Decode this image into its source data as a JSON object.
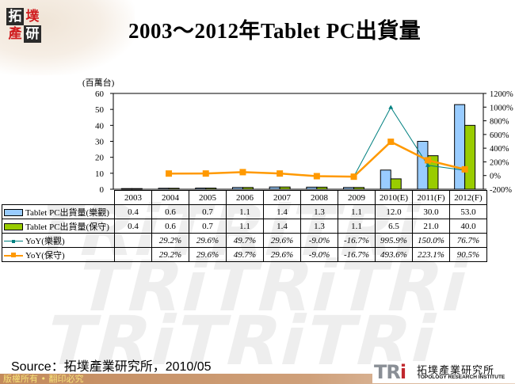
{
  "header": {
    "logo_chars": [
      "拓",
      "墣",
      "產",
      "研"
    ],
    "title": "2003～2012年Tablet PC出貨量"
  },
  "chart_data": {
    "type": "bar",
    "title": "2003～2012年Tablet PC出貨量",
    "ylabel": "(百萬台)",
    "ylim": [
      0,
      60
    ],
    "yticks": [
      "0",
      "10",
      "20",
      "30",
      "40",
      "50",
      "60"
    ],
    "y2lim": [
      -200,
      1200
    ],
    "y2ticks": [
      "-200%",
      "0%",
      "200%",
      "400%",
      "600%",
      "800%",
      "1000%",
      "1200%"
    ],
    "categories": [
      "2003",
      "2004",
      "2005",
      "2006",
      "2007",
      "2008",
      "2009",
      "2010(E)",
      "2011(F)",
      "2012(F)"
    ],
    "series": [
      {
        "name": "Tablet PC出貨量(樂觀)",
        "type": "bar",
        "axis": "left",
        "color": "#99ccff",
        "values": [
          0.4,
          0.6,
          0.7,
          1.1,
          1.4,
          1.3,
          1.1,
          12.0,
          30.0,
          53.0
        ]
      },
      {
        "name": "Tablet PC出貨量(保守)",
        "type": "bar",
        "axis": "left",
        "color": "#99cc00",
        "values": [
          0.4,
          0.6,
          0.7,
          1.1,
          1.4,
          1.3,
          1.1,
          6.5,
          21.0,
          40.0
        ]
      },
      {
        "name": "YoY(樂觀)",
        "type": "line",
        "axis": "right",
        "color": "#008080",
        "values": [
          null,
          29.2,
          29.6,
          49.7,
          29.6,
          -9.0,
          -16.7,
          995.9,
          150.0,
          76.7
        ]
      },
      {
        "name": "YoY(保守)",
        "type": "line",
        "axis": "right",
        "color": "#ff9900",
        "values": [
          null,
          29.2,
          29.6,
          49.7,
          29.6,
          -9.0,
          -16.7,
          493.6,
          223.1,
          90.5
        ]
      }
    ],
    "legend_position": "data-table",
    "grid": false
  },
  "table": {
    "years": [
      "2003",
      "2004",
      "2005",
      "2006",
      "2007",
      "2008",
      "2009",
      "2010(E)",
      "2011(F)",
      "2012(F)"
    ],
    "rows": [
      {
        "label": "Tablet PC出貨量(樂觀)",
        "cells": [
          "0.4",
          "0.6",
          "0.7",
          "1.1",
          "1.4",
          "1.3",
          "1.1",
          "12.0",
          "30.0",
          "53.0"
        ]
      },
      {
        "label": "Tablet PC出貨量(保守)",
        "cells": [
          "0.4",
          "0.6",
          "0.7",
          "1.1",
          "1.4",
          "1.3",
          "1.1",
          "6.5",
          "21.0",
          "40.0"
        ]
      },
      {
        "label": "YoY(樂觀)",
        "cells": [
          "",
          "29.2%",
          "29.6%",
          "49.7%",
          "29.6%",
          "-9.0%",
          "-16.7%",
          "995.9%",
          "150.0%",
          "76.7%"
        ]
      },
      {
        "label": "YoY(保守)",
        "cells": [
          "",
          "29.2%",
          "29.6%",
          "49.7%",
          "29.6%",
          "-9.0%",
          "-16.7%",
          "493.6%",
          "223.1%",
          "90.5%"
        ]
      }
    ]
  },
  "footer": {
    "source": "Source：拓墣產業研究所，2010/05",
    "copyright": "版權所有 • 翻印必究",
    "org_mark": "TRi",
    "org_name_cn": "拓墣產業研究所",
    "org_name_en": "TOPOLOGY RESEARCH INSTITUTE"
  },
  "watermark": "TRiTRiTRi"
}
